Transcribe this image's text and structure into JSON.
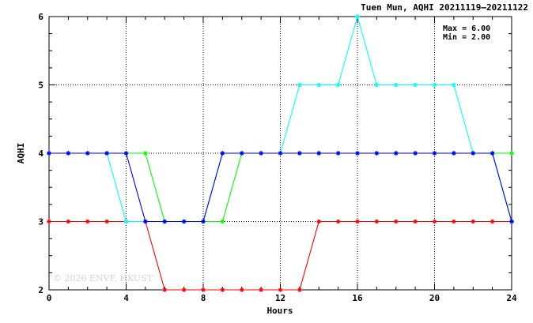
{
  "chart_data": {
    "type": "line",
    "title": "Tuen Mun, AQHI 20211119–20211122",
    "xlabel": "Hours",
    "ylabel": "AQHI",
    "xlim": [
      0,
      24
    ],
    "ylim": [
      2,
      6
    ],
    "x_ticks": [
      "0",
      "4",
      "8",
      "12",
      "16",
      "20",
      "24"
    ],
    "y_ticks": [
      "2",
      "3",
      "4",
      "5",
      "6"
    ],
    "grid": true,
    "annotations": [
      "Max = 6.00",
      "Min = 2.00"
    ],
    "watermark": "© 2026  ENVF, HKUST",
    "x": [
      0,
      1,
      2,
      3,
      4,
      5,
      6,
      7,
      8,
      9,
      10,
      11,
      12,
      13,
      14,
      15,
      16,
      17,
      18,
      19,
      20,
      21,
      22,
      23,
      24
    ],
    "series": [
      {
        "color": "#ff0000",
        "values": [
          3,
          3,
          3,
          3,
          3,
          3,
          2,
          2,
          2,
          2,
          2,
          2,
          2,
          2,
          3,
          3,
          3,
          3,
          3,
          3,
          3,
          3,
          3,
          3,
          3
        ]
      },
      {
        "color": "#00ffff",
        "values": [
          4,
          4,
          4,
          4,
          3,
          3,
          3,
          3,
          3,
          4,
          4,
          4,
          4,
          5,
          5,
          5,
          6,
          5,
          5,
          5,
          5,
          5,
          4,
          4,
          3
        ]
      },
      {
        "color": "#00ff00",
        "values": [
          4,
          4,
          4,
          4,
          4,
          4,
          3,
          3,
          3,
          3,
          4,
          4,
          4,
          4,
          4,
          4,
          4,
          4,
          4,
          4,
          4,
          4,
          4,
          4,
          4
        ]
      },
      {
        "color": "#0000ff",
        "values": [
          4,
          4,
          4,
          4,
          4,
          3,
          3,
          3,
          3,
          4,
          4,
          4,
          4,
          4,
          4,
          4,
          4,
          4,
          4,
          4,
          4,
          4,
          4,
          4,
          3
        ]
      }
    ]
  }
}
